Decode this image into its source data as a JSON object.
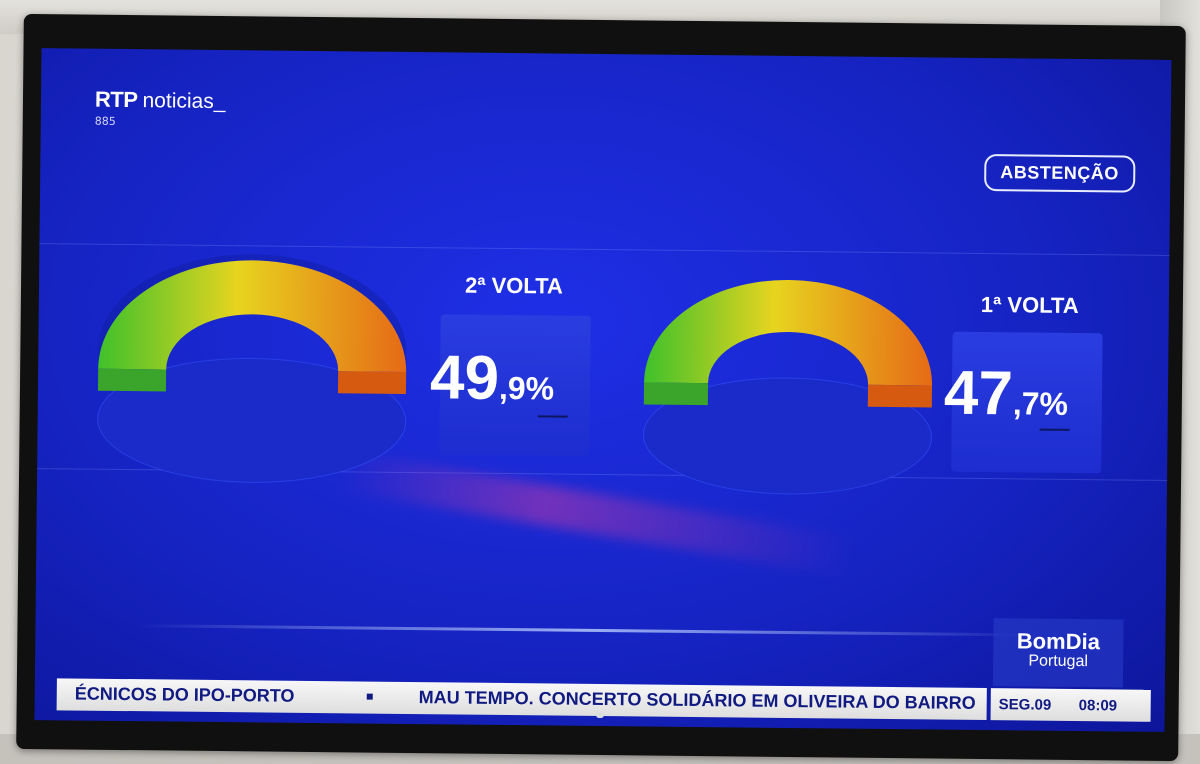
{
  "channel": {
    "name_bold": "RTP",
    "name_rest": "noticias_",
    "sub": "885"
  },
  "topic_badge": "ABSTENÇÃO",
  "rounds": [
    {
      "label": "2ª VOLTA",
      "value": 49.9,
      "value_int": "49",
      "value_dec": ",9%"
    },
    {
      "label": "1ª VOLTA",
      "value": 47.7,
      "value_int": "47",
      "value_dec": ",7%"
    }
  ],
  "show": {
    "line1": "BomDia",
    "line2": "Portugal"
  },
  "ticker": {
    "item1": "ÉCNICOS DO IPO-PORTO",
    "item2": "MAU TEMPO. CONCERTO SOLIDÁRIO EM OLIVEIRA DO BAIRRO"
  },
  "datetime": {
    "day": "SEG.09",
    "time": "08:09"
  },
  "colors": {
    "gauge_green": "#3fc12b",
    "gauge_yellow": "#e7d41f",
    "gauge_orange": "#e66a16",
    "screen_blue": "#1a28d8",
    "ticker_text": "#101a80"
  }
}
